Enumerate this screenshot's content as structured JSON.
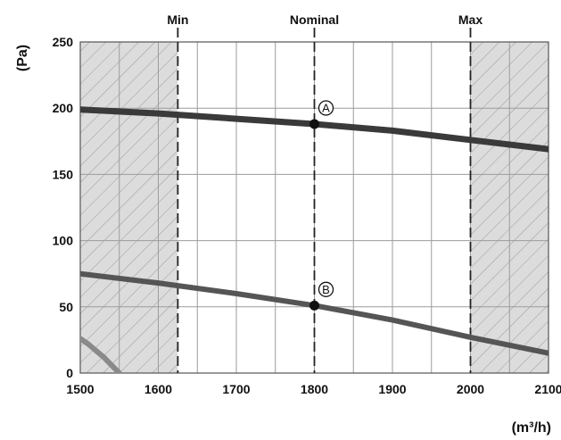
{
  "chart_data": {
    "type": "line",
    "xlabel": "(m³/h)",
    "ylabel": "(Pa)",
    "xlim": [
      1500,
      2100
    ],
    "ylim": [
      0,
      250
    ],
    "x_ticks": [
      "1500",
      "1600",
      "1700",
      "1800",
      "1900",
      "2000",
      "2100"
    ],
    "y_ticks": [
      "0",
      "50",
      "100",
      "150",
      "200",
      "250"
    ],
    "grid": true,
    "vertical_markers": [
      {
        "label": "Min",
        "x": 1625
      },
      {
        "label": "Nominal",
        "x": 1800
      },
      {
        "label": "Max",
        "x": 2000
      }
    ],
    "hatched_ranges": [
      {
        "from": 1500,
        "to": 1625
      },
      {
        "from": 2000,
        "to": 2100
      }
    ],
    "series": [
      {
        "x": [
          1500,
          1600,
          1700,
          1800,
          1900,
          2000,
          2100
        ],
        "values": [
          199,
          196,
          192,
          188,
          183,
          176,
          169
        ],
        "color": "#3a3a3a"
      },
      {
        "x": [
          1500,
          1600,
          1700,
          1800,
          1900,
          2000,
          2100
        ],
        "values": [
          75,
          68,
          60,
          51,
          40,
          27,
          15
        ],
        "color": "#555555"
      },
      {
        "x": [
          1500,
          1510,
          1520,
          1530,
          1540,
          1550
        ],
        "values": [
          26,
          22,
          17,
          12,
          6,
          0
        ],
        "color": "#8a8a8a"
      }
    ],
    "points": [
      {
        "label": "A",
        "x": 1800,
        "y": 188
      },
      {
        "label": "B",
        "x": 1800,
        "y": 51
      }
    ]
  }
}
